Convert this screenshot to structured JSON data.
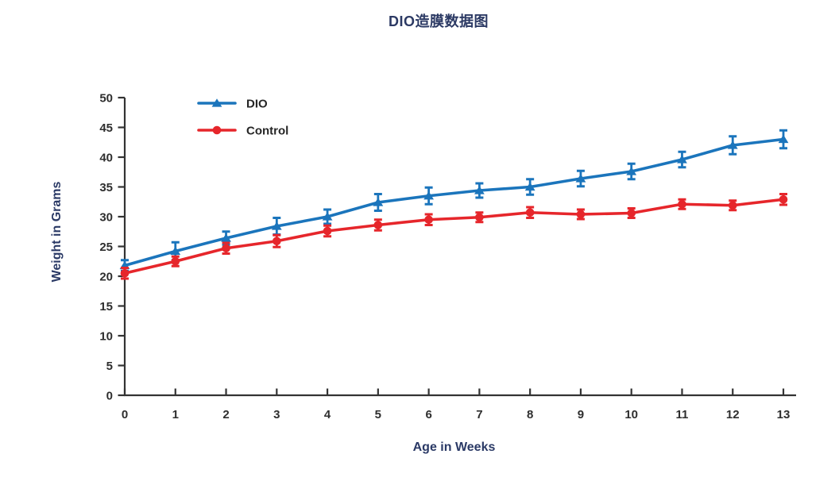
{
  "page": {
    "background": "#ffffff"
  },
  "chart_data": {
    "type": "line",
    "title": "DIO造膜数据图",
    "xlabel": "Age in Weeks",
    "ylabel": "Weight in Grams",
    "x": [
      0,
      1,
      2,
      3,
      4,
      5,
      6,
      7,
      8,
      9,
      10,
      11,
      12,
      13
    ],
    "xlim": [
      0,
      13
    ],
    "ylim": [
      0,
      50
    ],
    "xticks": [
      0,
      1,
      2,
      3,
      4,
      5,
      6,
      7,
      8,
      9,
      10,
      11,
      12,
      13
    ],
    "yticks": [
      0,
      5,
      10,
      15,
      20,
      25,
      30,
      35,
      40,
      45,
      50
    ],
    "grid": false,
    "error_bars": true,
    "legend": {
      "position": "top-left-inside",
      "entries": [
        "DIO",
        "Control"
      ]
    },
    "series": [
      {
        "name": "DIO",
        "color": "#1B75BC",
        "marker": "triangle-up",
        "values": [
          21.8,
          24.2,
          26.4,
          28.4,
          30.0,
          32.4,
          33.5,
          34.4,
          35.0,
          36.4,
          37.6,
          39.6,
          42.0,
          43.0
        ],
        "errors": [
          0.9,
          1.5,
          1.1,
          1.4,
          1.2,
          1.4,
          1.4,
          1.2,
          1.3,
          1.3,
          1.3,
          1.3,
          1.5,
          1.5
        ]
      },
      {
        "name": "Control",
        "color": "#E6262B",
        "marker": "circle",
        "values": [
          20.5,
          22.5,
          24.7,
          25.9,
          27.6,
          28.6,
          29.5,
          29.9,
          30.7,
          30.4,
          30.6,
          32.1,
          31.9,
          32.9
        ],
        "errors": [
          0.9,
          0.8,
          0.9,
          1.0,
          0.9,
          0.9,
          0.9,
          0.8,
          0.9,
          0.8,
          0.8,
          0.8,
          0.8,
          0.9
        ]
      }
    ],
    "colors": {
      "title_text": "#2C3A64",
      "axis_label_text": "#2B3A66",
      "tick_text": "#2E2E2E",
      "axis_line": "#333333",
      "dio_series": "#1B75BC",
      "control_series": "#E6262B"
    }
  }
}
